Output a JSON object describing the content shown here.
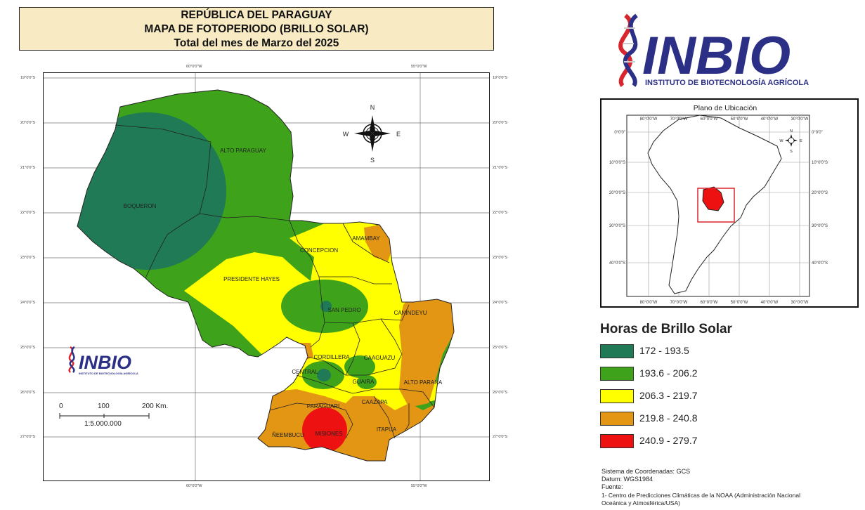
{
  "title": {
    "line1": "REPÚBLICA DEL PARAGUAY",
    "line2": "MAPA DE FOTOPERIODO (BRILLO SOLAR)",
    "line3": "Total del mes de Marzo del 2025"
  },
  "map": {
    "lat_labels": [
      "19°0'0\"S",
      "20°0'0\"S",
      "21°0'0\"S",
      "22°0'0\"S",
      "23°0'0\"S",
      "24°0'0\"S",
      "25°0'0\"S",
      "26°0'0\"S",
      "27°0'0\"S"
    ],
    "lon_labels": [
      "60°0'0\"W",
      "55°0'0\"W"
    ],
    "departments": {
      "alto_paraguay": "ALTO PARAGUAY",
      "boqueron": "BOQUERON",
      "concepcion": "CONCEPCION",
      "amambay": "AMAMBAY",
      "presidente_hayes": "PRESIDENTE HAYES",
      "san_pedro": "SAN PEDRO",
      "canindeyu": "CANINDEYU",
      "cordillera": "CORDILLERA",
      "caaguazu": "CAAGUAZU",
      "central": "CENTRAL",
      "guaira": "GUAIRA",
      "alto_parana": "ALTO PARANA",
      "paraguari": "PARAGUARI",
      "caazapa": "CAAZAPA",
      "neembucu": "ÑEEMBUCU",
      "misiones": "MISIONES",
      "itapua": "ITAPUA"
    },
    "compass": {
      "n": "N",
      "s": "S",
      "e": "E",
      "w": "W"
    },
    "scale": {
      "t0": "0",
      "t1": "100",
      "t2": "200 Km.",
      "ratio": "1:5.000.000"
    }
  },
  "logo": {
    "name": "INBIO",
    "subtitle": "INSTITUTO DE BIOTECNOLOGÍA AGRÍCOLA",
    "colors": {
      "navy": "#2b2f86",
      "red": "#d8262e"
    }
  },
  "location_map": {
    "title": "Plano de Ubicación",
    "lon_labels": [
      "80°0'0\"W",
      "70°0'0\"W",
      "60°0'0\"W",
      "50°0'0\"W",
      "40°0'0\"W",
      "30°0'0\"W"
    ],
    "lat_labels": [
      "0°0'0\"",
      "10°0'0\"S",
      "20°0'0\"S",
      "30°0'0\"S",
      "40°0'0\"S"
    ],
    "compass": {
      "n": "N",
      "s": "S",
      "e": "E",
      "w": "W"
    }
  },
  "legend": {
    "title": "Horas de Brillo Solar",
    "items": [
      {
        "label": "172 - 193.5",
        "color": "#1f7a55"
      },
      {
        "label": "193.6 - 206.2",
        "color": "#3ea31a"
      },
      {
        "label": "206.3 - 219.7",
        "color": "#ffff00"
      },
      {
        "label": "219.8 - 240.8",
        "color": "#e39514"
      },
      {
        "label": "240.9 - 279.7",
        "color": "#ee1111"
      }
    ]
  },
  "info": {
    "coords": "Sistema de Coordenadas: GCS",
    "datum_label": "Datum:",
    "datum_value": "WGS1984",
    "source_label": "Fuente:",
    "source_1": "1- Centro de Predicciones Climáticas de la NOAA (Administración Nacional",
    "source_2": "Oceánica y Atmosférica/USA)"
  }
}
